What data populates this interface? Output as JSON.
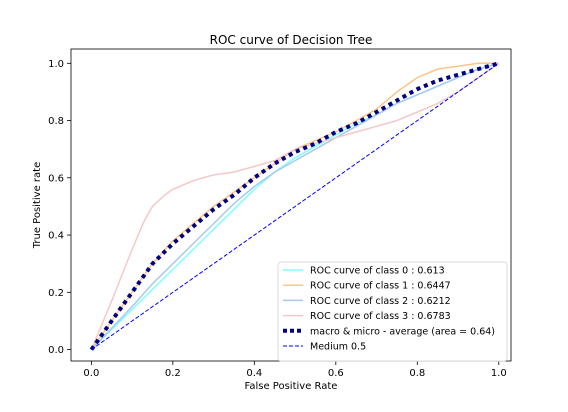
{
  "chart_data": {
    "type": "line",
    "title": "ROC curve of Decision Tree",
    "xlabel": "False Positive Rate",
    "ylabel": "True Positive rate",
    "xlim": [
      -0.05,
      1.03
    ],
    "ylim": [
      -0.04,
      1.05
    ],
    "xticks": [
      0.0,
      0.2,
      0.4,
      0.6,
      0.8,
      1.0
    ],
    "yticks": [
      0.0,
      0.2,
      0.4,
      0.6,
      0.8,
      1.0
    ],
    "xtick_labels": [
      "0.0",
      "0.2",
      "0.4",
      "0.6",
      "0.8",
      "1.0"
    ],
    "ytick_labels": [
      "0.0",
      "0.2",
      "0.4",
      "0.6",
      "0.8",
      "1.0"
    ],
    "grid": false,
    "legend_position": "lower-right",
    "series": [
      {
        "name": "ROC curve of class 0 : 0.613",
        "color": "#7fffff",
        "style": "solid",
        "x": [
          0.0,
          0.05,
          0.1,
          0.15,
          0.2,
          0.25,
          0.3,
          0.35,
          0.4,
          0.45,
          0.5,
          0.55,
          0.6,
          0.65,
          0.7,
          0.75,
          0.8,
          0.85,
          0.9,
          0.95,
          1.0
        ],
        "y": [
          0.0,
          0.07,
          0.14,
          0.21,
          0.28,
          0.35,
          0.42,
          0.49,
          0.56,
          0.62,
          0.67,
          0.71,
          0.75,
          0.79,
          0.82,
          0.86,
          0.89,
          0.92,
          0.95,
          0.98,
          1.0
        ]
      },
      {
        "name": "ROC curve of class 1 : 0.6447",
        "color": "#ffc48a",
        "style": "solid",
        "x": [
          0.0,
          0.05,
          0.1,
          0.15,
          0.2,
          0.25,
          0.3,
          0.35,
          0.4,
          0.45,
          0.5,
          0.55,
          0.6,
          0.65,
          0.7,
          0.75,
          0.8,
          0.85,
          0.9,
          0.95,
          1.0
        ],
        "y": [
          0.0,
          0.1,
          0.2,
          0.3,
          0.38,
          0.44,
          0.5,
          0.55,
          0.6,
          0.65,
          0.7,
          0.73,
          0.76,
          0.8,
          0.84,
          0.9,
          0.95,
          0.98,
          0.99,
          1.0,
          1.0
        ]
      },
      {
        "name": "ROC curve of class 2 : 0.6212",
        "color": "#a9c8f0",
        "style": "solid",
        "x": [
          0.0,
          0.05,
          0.1,
          0.15,
          0.2,
          0.25,
          0.3,
          0.35,
          0.4,
          0.45,
          0.5,
          0.55,
          0.6,
          0.65,
          0.7,
          0.75,
          0.8,
          0.85,
          0.9,
          0.95,
          1.0
        ],
        "y": [
          0.0,
          0.075,
          0.15,
          0.23,
          0.3,
          0.37,
          0.44,
          0.51,
          0.57,
          0.62,
          0.66,
          0.7,
          0.74,
          0.78,
          0.82,
          0.86,
          0.89,
          0.92,
          0.95,
          0.98,
          1.0
        ]
      },
      {
        "name": "ROC curve of class 3 : 0.6783",
        "color": "#f5c8c8",
        "style": "solid",
        "x": [
          0.0,
          0.05,
          0.1,
          0.13,
          0.15,
          0.18,
          0.2,
          0.25,
          0.3,
          0.35,
          0.4,
          0.45,
          0.5,
          0.55,
          0.6,
          0.65,
          0.7,
          0.75,
          0.8,
          0.85,
          0.9,
          0.95,
          1.0
        ],
        "y": [
          0.0,
          0.17,
          0.35,
          0.45,
          0.5,
          0.54,
          0.56,
          0.59,
          0.61,
          0.62,
          0.64,
          0.66,
          0.7,
          0.72,
          0.74,
          0.76,
          0.78,
          0.8,
          0.83,
          0.86,
          0.9,
          0.95,
          1.0
        ]
      },
      {
        "name": "macro & micro - average (area = 0.64)",
        "color": "#000080",
        "style": "dotted",
        "x": [
          0.0,
          0.05,
          0.1,
          0.15,
          0.2,
          0.25,
          0.3,
          0.35,
          0.4,
          0.45,
          0.5,
          0.55,
          0.6,
          0.65,
          0.7,
          0.75,
          0.8,
          0.85,
          0.9,
          0.95,
          1.0
        ],
        "y": [
          0.0,
          0.1,
          0.2,
          0.3,
          0.37,
          0.43,
          0.49,
          0.54,
          0.6,
          0.65,
          0.69,
          0.72,
          0.76,
          0.79,
          0.83,
          0.87,
          0.91,
          0.94,
          0.96,
          0.98,
          1.0
        ]
      },
      {
        "name": "Medium 0.5",
        "color": "#0000ff",
        "style": "dashed",
        "x": [
          0.0,
          1.0
        ],
        "y": [
          0.0,
          1.0
        ]
      }
    ]
  }
}
